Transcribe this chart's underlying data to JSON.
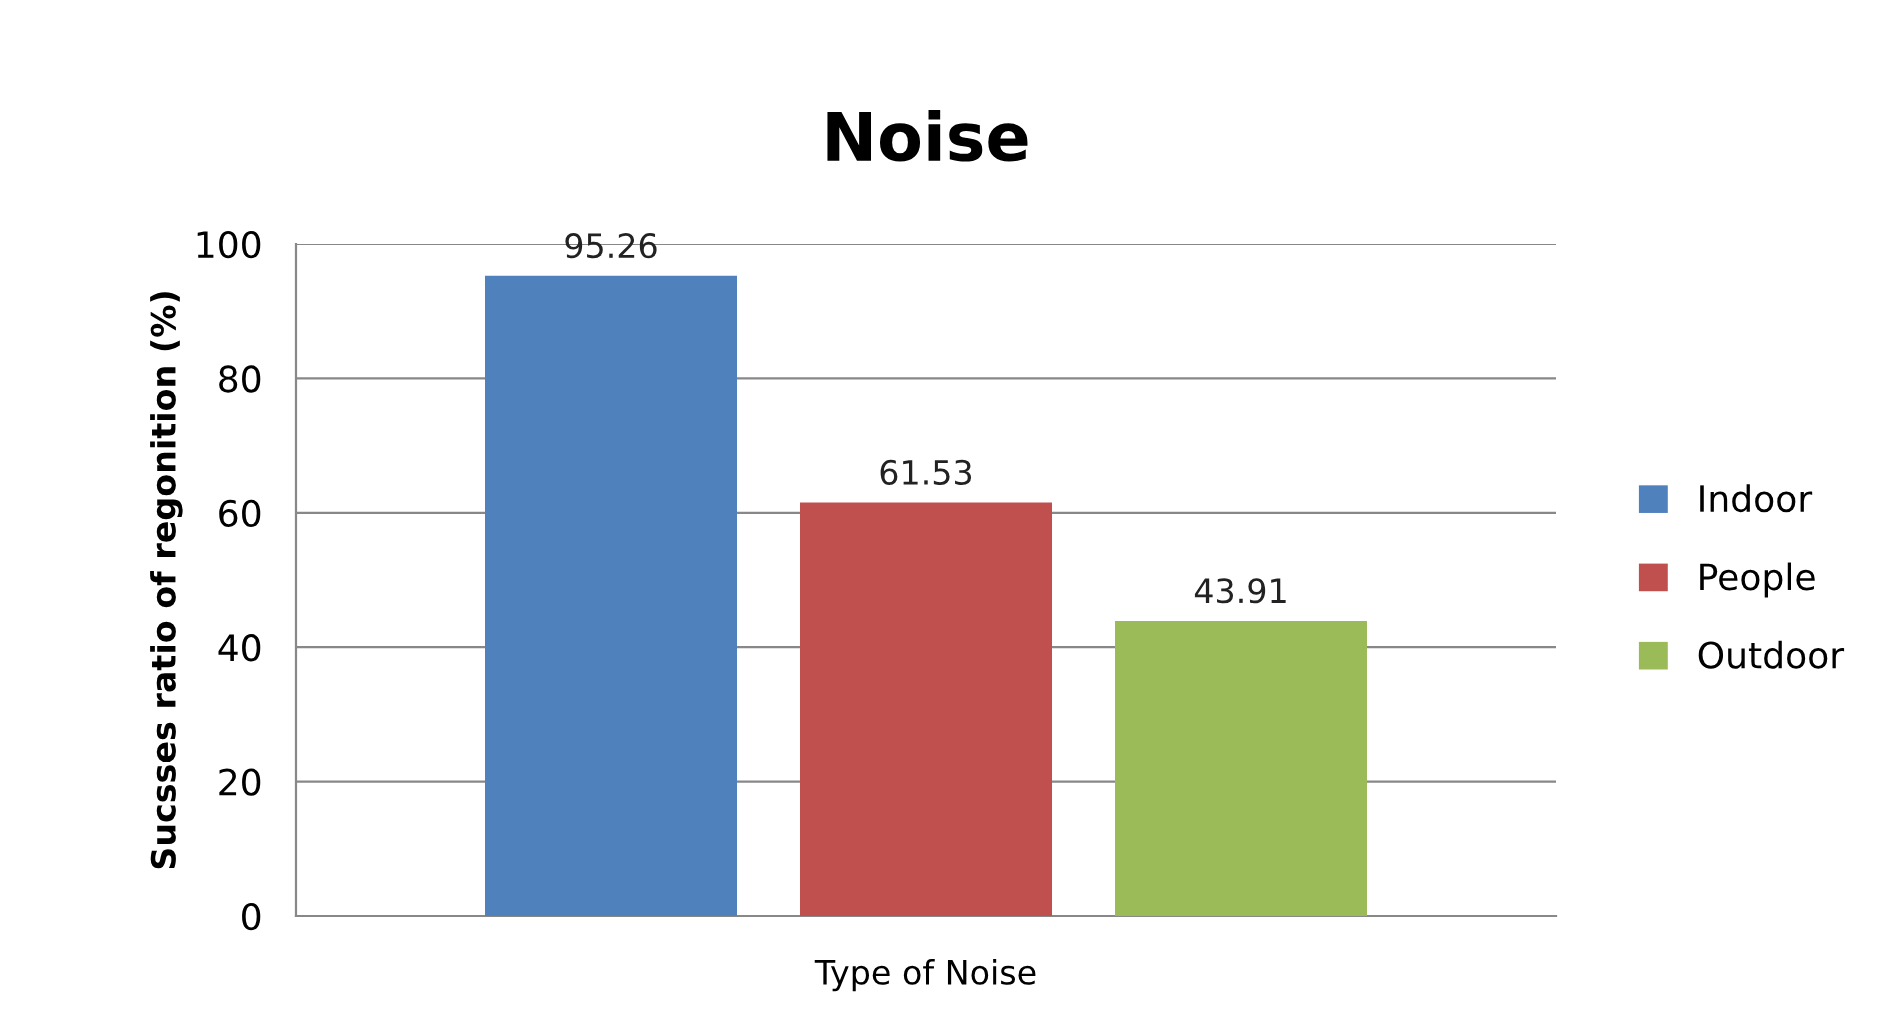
{
  "chart_data": {
    "type": "bar",
    "title": "Noise",
    "xlabel": "Type of Noise",
    "ylabel": "Sucsses ratio of regonition (%)",
    "categories": [
      null
    ],
    "series": [
      {
        "name": "Indoor",
        "color": "#4f81bd",
        "values": [
          95.26
        ]
      },
      {
        "name": "People",
        "color": "#c0504d",
        "values": [
          61.53
        ]
      },
      {
        "name": "Outdoor",
        "color": "#9bbb59",
        "values": [
          43.91
        ]
      }
    ],
    "ylim": [
      0,
      100
    ],
    "yticks": [
      0,
      20,
      40,
      60,
      80,
      100
    ],
    "grid": "y",
    "legend": "right",
    "data_labels": true
  }
}
